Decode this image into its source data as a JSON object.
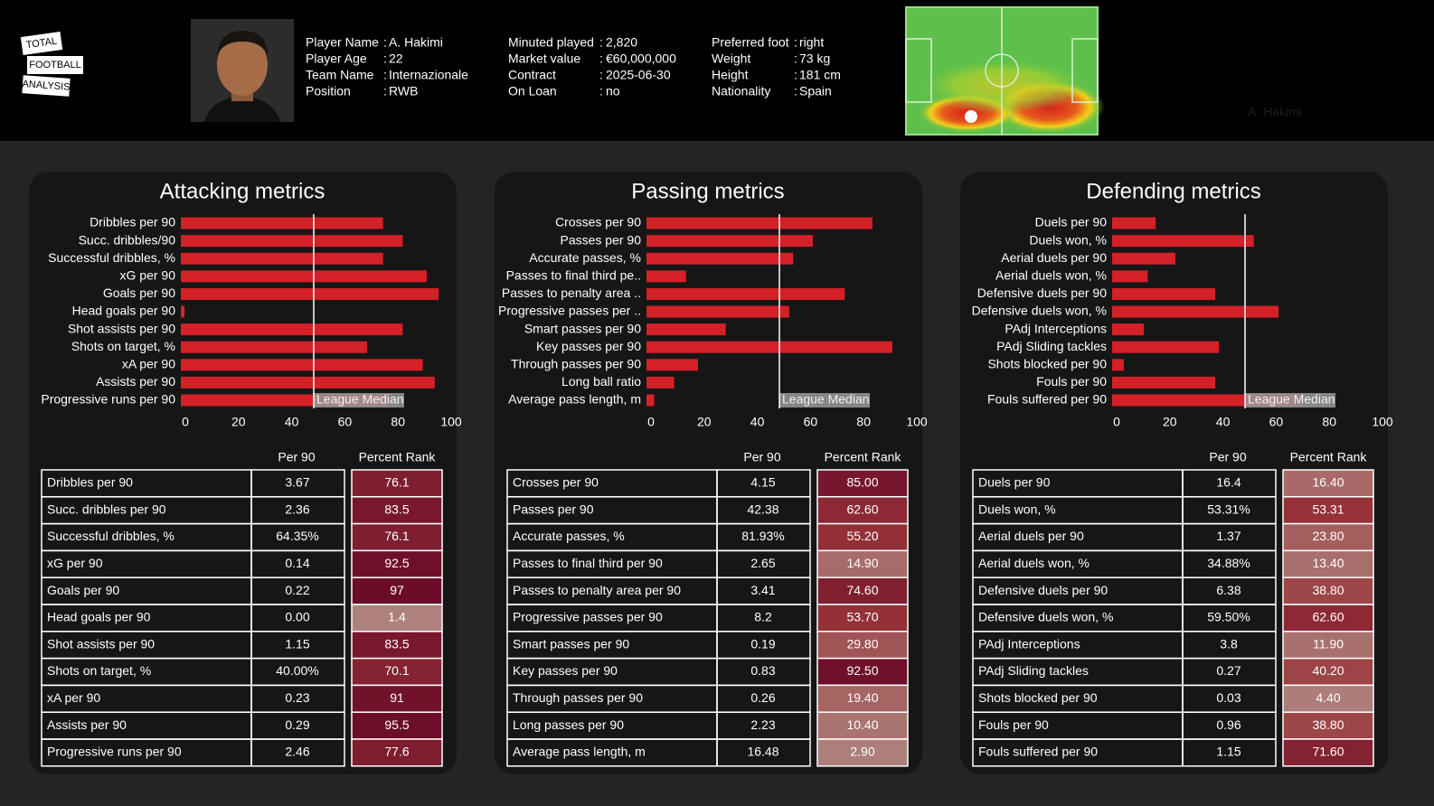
{
  "logo": [
    "TOTAL",
    "FOOTBALL",
    "ANALYSIS"
  ],
  "header": {
    "separator": ":",
    "columns": [
      [
        {
          "label": "Player Name",
          "value": "A. Hakimi"
        },
        {
          "label": "Player Age",
          "value": "22"
        },
        {
          "label": "Team Name",
          "value": "Internazionale"
        },
        {
          "label": "Position",
          "value": "RWB"
        }
      ],
      [
        {
          "label": "Minuted played",
          "value": "2,820"
        },
        {
          "label": "Market value",
          "value": "€60,000,000"
        },
        {
          "label": "Contract",
          "value": "2025-06-30"
        },
        {
          "label": "On Loan",
          "value": "no"
        }
      ],
      [
        {
          "label": "Preferred foot",
          "value": "right"
        },
        {
          "label": "Weight",
          "value": "73 kg"
        },
        {
          "label": "Height",
          "value": "181 cm"
        },
        {
          "label": "Nationality",
          "value": "Spain"
        }
      ]
    ],
    "heatmap_label": "A. Hakimi"
  },
  "chart_data": [
    {
      "type": "bar",
      "title": "Attacking metrics",
      "color": "#d42027",
      "categories": [
        "Dribbles per 90",
        "Succ. dribbles/90",
        "Successful dribbles, %",
        "xG per 90",
        "Goals per 90",
        "Head goals per 90",
        "Shot assists per 90",
        "Shots on target, %",
        "xA per 90",
        "Assists per 90",
        "Progressive runs per 90"
      ],
      "values": [
        76.1,
        83.5,
        76.1,
        92.5,
        97,
        1.4,
        83.5,
        70.1,
        91,
        95.5,
        77.6
      ],
      "xlim": [
        0,
        100
      ],
      "xticks": [
        0,
        20,
        40,
        60,
        80,
        100
      ],
      "median": 50,
      "median_label": "League Median"
    },
    {
      "type": "bar",
      "title": "Passing metrics",
      "color": "#d42027",
      "categories": [
        "Crosses per 90",
        "Passes per 90",
        "Accurate passes, %",
        "Passes to final third pe..",
        "Passes to penalty area ..",
        "Progressive passes per ..",
        "Smart passes per 90",
        "Key passes per 90",
        "Through passes per 90",
        "Long ball ratio",
        "Average pass length, m"
      ],
      "values": [
        85,
        62.6,
        55.2,
        14.9,
        74.6,
        53.7,
        29.8,
        92.5,
        19.4,
        10.4,
        2.9
      ],
      "xlim": [
        0,
        100
      ],
      "xticks": [
        0,
        20,
        40,
        60,
        80,
        100
      ],
      "median": 50,
      "median_label": "League Median"
    },
    {
      "type": "bar",
      "title": "Defending metrics",
      "color": "#d42027",
      "categories": [
        "Duels per 90",
        "Duels won, %",
        "Aerial duels per 90",
        "Aerial duels won, %",
        "Defensive duels per 90",
        "Defensive duels won, %",
        "PAdj Interceptions",
        "PAdj Sliding tackles",
        "Shots blocked per 90",
        "Fouls per 90",
        "Fouls suffered per 90"
      ],
      "values": [
        16.4,
        53.31,
        23.8,
        13.4,
        38.8,
        62.6,
        11.9,
        40.2,
        4.4,
        38.8,
        71.6
      ],
      "xlim": [
        0,
        100
      ],
      "xticks": [
        0,
        20,
        40,
        60,
        80,
        100
      ],
      "median": 50,
      "median_label": "League Median"
    }
  ],
  "tables": [
    {
      "columns": [
        "Per 90",
        "Percent Rank"
      ],
      "rows": [
        [
          "Dribbles per 90",
          "3.67",
          "76.1"
        ],
        [
          "Succ. dribbles per 90",
          "2.36",
          "83.5"
        ],
        [
          "Successful dribbles, %",
          "64.35%",
          "76.1"
        ],
        [
          "xG per 90",
          "0.14",
          "92.5"
        ],
        [
          "Goals per 90",
          "0.22",
          "97"
        ],
        [
          "Head goals per 90",
          "0.00",
          "1.4"
        ],
        [
          "Shot assists per 90",
          "1.15",
          "83.5"
        ],
        [
          "Shots on target, %",
          "40.00%",
          "70.1"
        ],
        [
          "xA per 90",
          "0.23",
          "91"
        ],
        [
          "Assists per 90",
          "0.29",
          "95.5"
        ],
        [
          "Progressive runs per 90",
          "2.46",
          "77.6"
        ]
      ]
    },
    {
      "columns": [
        "Per 90",
        "Percent Rank"
      ],
      "rows": [
        [
          "Crosses per 90",
          "4.15",
          "85.00"
        ],
        [
          "Passes per 90",
          "42.38",
          "62.60"
        ],
        [
          "Accurate passes, %",
          "81.93%",
          "55.20"
        ],
        [
          "Passes to final third per 90",
          "2.65",
          "14.90"
        ],
        [
          "Passes to penalty area per 90",
          "3.41",
          "74.60"
        ],
        [
          "Progressive passes per 90",
          "8.2",
          "53.70"
        ],
        [
          "Smart passes per 90",
          "0.19",
          "29.80"
        ],
        [
          "Key passes per 90",
          "0.83",
          "92.50"
        ],
        [
          "Through passes per 90",
          "0.26",
          "19.40"
        ],
        [
          "Long passes per 90",
          "2.23",
          "10.40"
        ],
        [
          "Average pass length, m",
          "16.48",
          "2.90"
        ]
      ]
    },
    {
      "columns": [
        "Per 90",
        "Percent Rank"
      ],
      "rows": [
        [
          "Duels per 90",
          "16.4",
          "16.40"
        ],
        [
          "Duels won, %",
          "53.31%",
          "53.31"
        ],
        [
          "Aerial duels per 90",
          "1.37",
          "23.80"
        ],
        [
          "Aerial duels won, %",
          "34.88%",
          "13.40"
        ],
        [
          "Defensive duels per 90",
          "6.38",
          "38.80"
        ],
        [
          "Defensive duels won, %",
          "59.50%",
          "62.60"
        ],
        [
          "PAdj Interceptions",
          "3.8",
          "11.90"
        ],
        [
          "PAdj Sliding tackles",
          "0.27",
          "40.20"
        ],
        [
          "Shots blocked per 90",
          "0.03",
          "4.40"
        ],
        [
          "Fouls per 90",
          "0.96",
          "38.80"
        ],
        [
          "Fouls suffered per 90",
          "1.15",
          "71.60"
        ]
      ]
    }
  ]
}
